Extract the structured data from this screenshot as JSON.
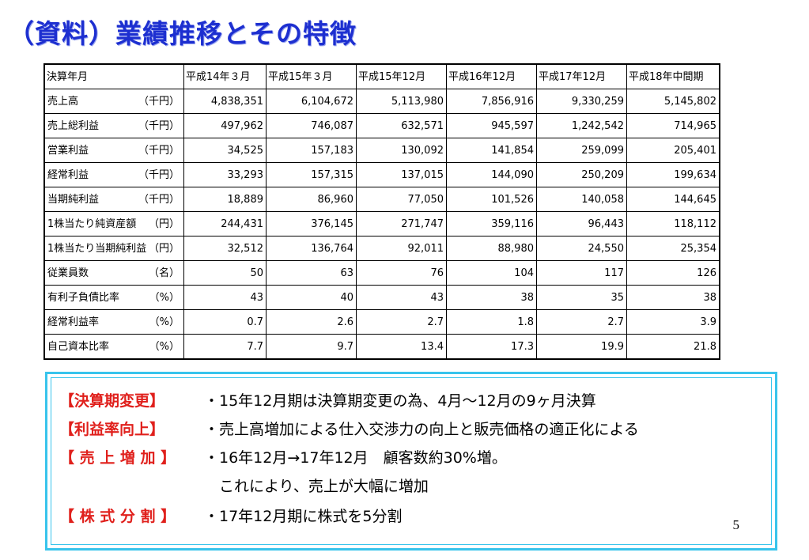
{
  "title": "（資料）業績推移とその特徴",
  "table": {
    "header": [
      "決算年月",
      "平成14年３月",
      "平成15年３月",
      "平成15年12月",
      "平成16年12月",
      "平成17年12月",
      "平成18年中間期"
    ],
    "rows": [
      {
        "label": "売上高",
        "unit": "（千円）",
        "values": [
          "4,838,351",
          "6,104,672",
          "5,113,980",
          "7,856,916",
          "9,330,259",
          "5,145,802"
        ]
      },
      {
        "label": "売上総利益",
        "unit": "（千円）",
        "values": [
          "497,962",
          "746,087",
          "632,571",
          "945,597",
          "1,242,542",
          "714,965"
        ]
      },
      {
        "label": "営業利益",
        "unit": "（千円）",
        "values": [
          "34,525",
          "157,183",
          "130,092",
          "141,854",
          "259,099",
          "205,401"
        ]
      },
      {
        "label": "経常利益",
        "unit": "（千円）",
        "values": [
          "33,293",
          "157,315",
          "137,015",
          "144,090",
          "250,209",
          "199,634"
        ]
      },
      {
        "label": "当期純利益",
        "unit": "（千円）",
        "values": [
          "18,889",
          "86,960",
          "77,050",
          "101,526",
          "140,058",
          "144,645"
        ]
      },
      {
        "label": "1株当たり純資産額",
        "unit": "（円）",
        "values": [
          "244,431",
          "376,145",
          "271,747",
          "359,116",
          "96,443",
          "118,112"
        ]
      },
      {
        "label": "1株当たり当期純利益",
        "unit": "（円）",
        "values": [
          "32,512",
          "136,764",
          "92,011",
          "88,980",
          "24,550",
          "25,354"
        ]
      },
      {
        "label": "従業員数",
        "unit": "（名）",
        "values": [
          "50",
          "63",
          "76",
          "104",
          "117",
          "126"
        ]
      },
      {
        "label": "有利子負債比率",
        "unit": "（%）",
        "values": [
          "43",
          "40",
          "43",
          "38",
          "35",
          "38"
        ]
      },
      {
        "label": "経常利益率",
        "unit": "（%）",
        "values": [
          "0.7",
          "2.6",
          "2.7",
          "1.8",
          "2.7",
          "3.9"
        ]
      },
      {
        "label": "自己資本比率",
        "unit": "（%）",
        "values": [
          "7.7",
          "9.7",
          "13.4",
          "17.3",
          "19.9",
          "21.8"
        ]
      }
    ]
  },
  "notes": [
    {
      "key": "【決算期変更】",
      "text": "・15年12月期は決算期変更の為、4月～12月の9ヶ月決算"
    },
    {
      "key": "【利益率向上】",
      "text": "・売上高増加による仕入交渉力の向上と販売価格の適正化による"
    },
    {
      "key": "【 売 上 増 加 】",
      "text": "・16年12月→17年12月　顧客数約30%増。"
    },
    {
      "key": "",
      "text": "　これにより、売上が大幅に増加"
    },
    {
      "key": "【 株 式 分 割 】",
      "text": "・17年12月期に株式を5分割"
    }
  ],
  "page_number": "5"
}
